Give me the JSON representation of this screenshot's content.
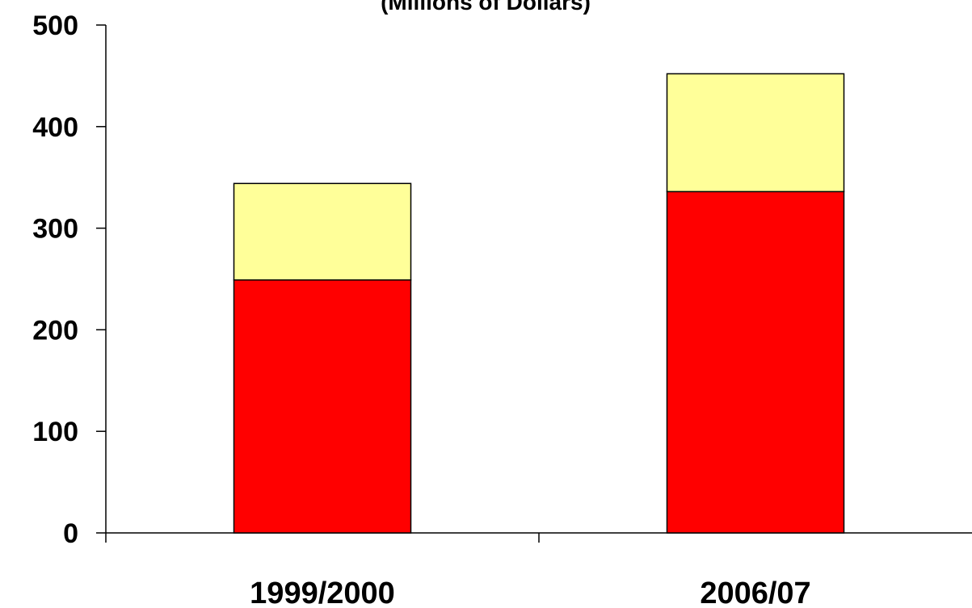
{
  "chart_data": {
    "type": "bar",
    "stacked": true,
    "title": "(Millions of Dollars)",
    "categories": [
      "1999/2000",
      "2006/07"
    ],
    "series": [
      {
        "values": [
          249,
          336
        ],
        "color": "#ff0000"
      },
      {
        "values": [
          95,
          116
        ],
        "color": "#ffff99"
      }
    ],
    "ylim": [
      0,
      500
    ],
    "yticks": [
      "0",
      "100",
      "200",
      "300",
      "400",
      "500"
    ],
    "xlabel": "",
    "ylabel": "",
    "grid": false,
    "legend": "none"
  }
}
